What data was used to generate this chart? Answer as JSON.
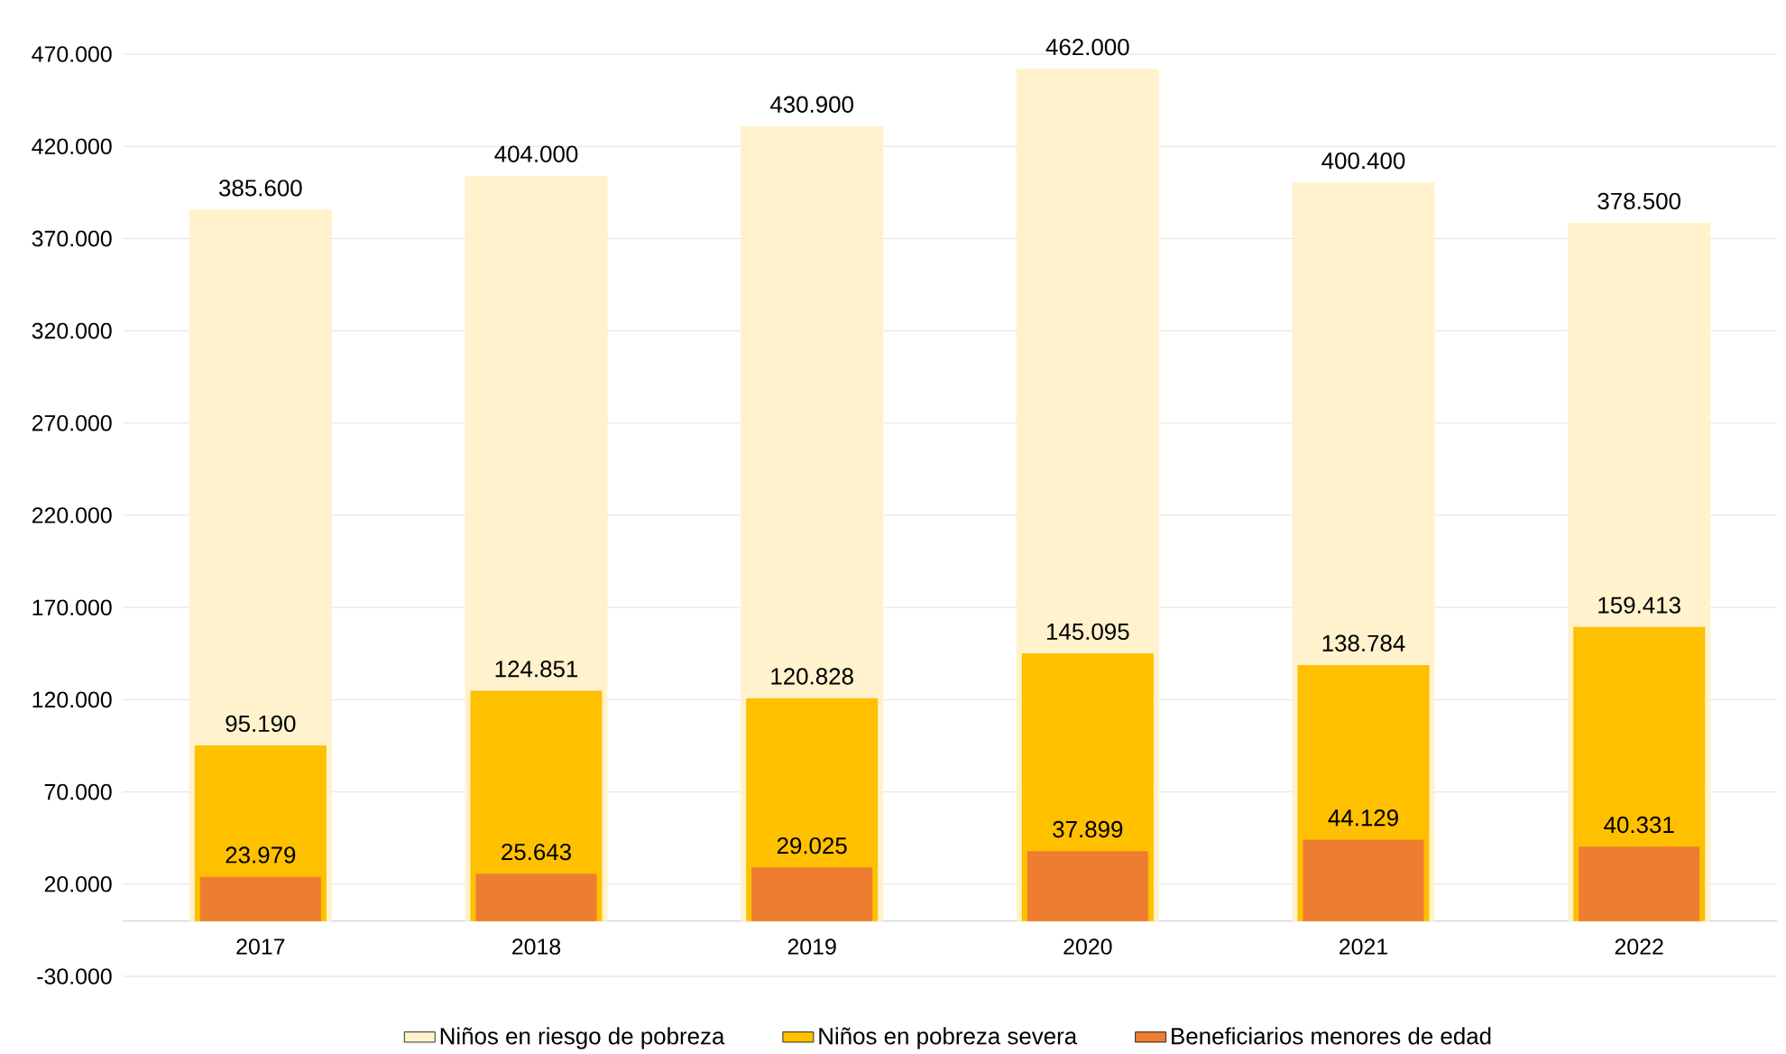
{
  "chart_data": {
    "type": "bar",
    "categories": [
      "2017",
      "2018",
      "2019",
      "2020",
      "2021",
      "2022"
    ],
    "series": [
      {
        "name": "Niños en riesgo de pobreza",
        "color": "#fff2cc",
        "values": [
          385600,
          404000,
          430900,
          462000,
          400400,
          378500
        ],
        "value_labels": [
          "385.600",
          "404.000",
          "430.900",
          "462.000",
          "400.400",
          "378.500"
        ]
      },
      {
        "name": "Niños en pobreza severa",
        "color": "#ffc000",
        "values": [
          95190,
          124851,
          120828,
          145095,
          138784,
          159413
        ],
        "value_labels": [
          "95.190",
          "124.851",
          "120.828",
          "145.095",
          "138.784",
          "159.413"
        ]
      },
      {
        "name": "Beneficiarios menores de edad",
        "color": "#ed7d31",
        "values": [
          23979,
          25643,
          29025,
          37899,
          44129,
          40331
        ],
        "value_labels": [
          "23.979",
          "25.643",
          "29.025",
          "37.899",
          "44.129",
          "40.331"
        ]
      }
    ],
    "ylim": [
      -30000,
      470000
    ],
    "yticks": [
      {
        "value": -30000,
        "label": "-30.000"
      },
      {
        "value": 20000,
        "label": "20.000"
      },
      {
        "value": 70000,
        "label": "70.000"
      },
      {
        "value": 120000,
        "label": "120.000"
      },
      {
        "value": 170000,
        "label": "170.000"
      },
      {
        "value": 220000,
        "label": "220.000"
      },
      {
        "value": 270000,
        "label": "270.000"
      },
      {
        "value": 320000,
        "label": "320.000"
      },
      {
        "value": 370000,
        "label": "370.000"
      },
      {
        "value": 420000,
        "label": "420.000"
      },
      {
        "value": 470000,
        "label": "470.000"
      }
    ],
    "grid": "y",
    "legend": "bottom"
  }
}
